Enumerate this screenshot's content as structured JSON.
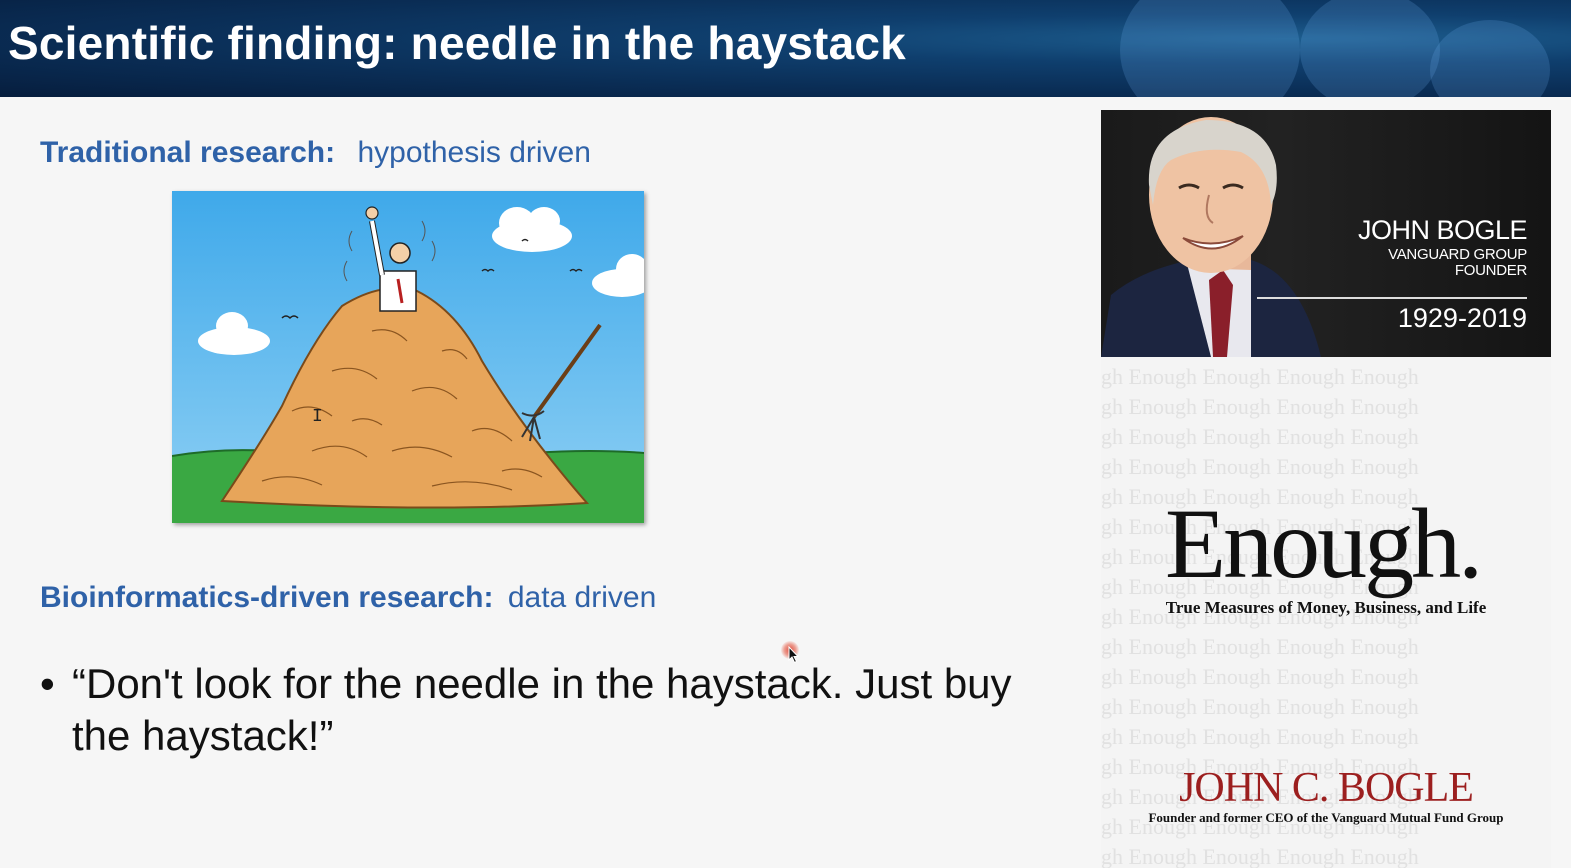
{
  "slide": {
    "title": "Scientific finding: needle in the haystack",
    "traditional": {
      "label": "Traditional research:",
      "value": "hypothesis driven"
    },
    "bioinformatics": {
      "label": "Bioinformatics-driven research:",
      "value": "data driven"
    },
    "bullet": {
      "symbol": "•",
      "text": "“Don't look for the needle in the haystack. Just buy the haystack!”"
    },
    "cartoon_icon": "haystack-cartoon",
    "accent_color": "#2f62a8"
  },
  "book": {
    "photo_name": "JOHN BOGLE",
    "photo_role": "VANGUARD GROUP FOUNDER",
    "photo_years": "1929-2019",
    "title": "Enough.",
    "subtitle": "True Measures of Money, Business, and Life",
    "author": "JOHN C. BOGLE",
    "author_description": "Founder and former CEO of the Vanguard Mutual Fund Group",
    "author_color": "#9c1f1f"
  }
}
